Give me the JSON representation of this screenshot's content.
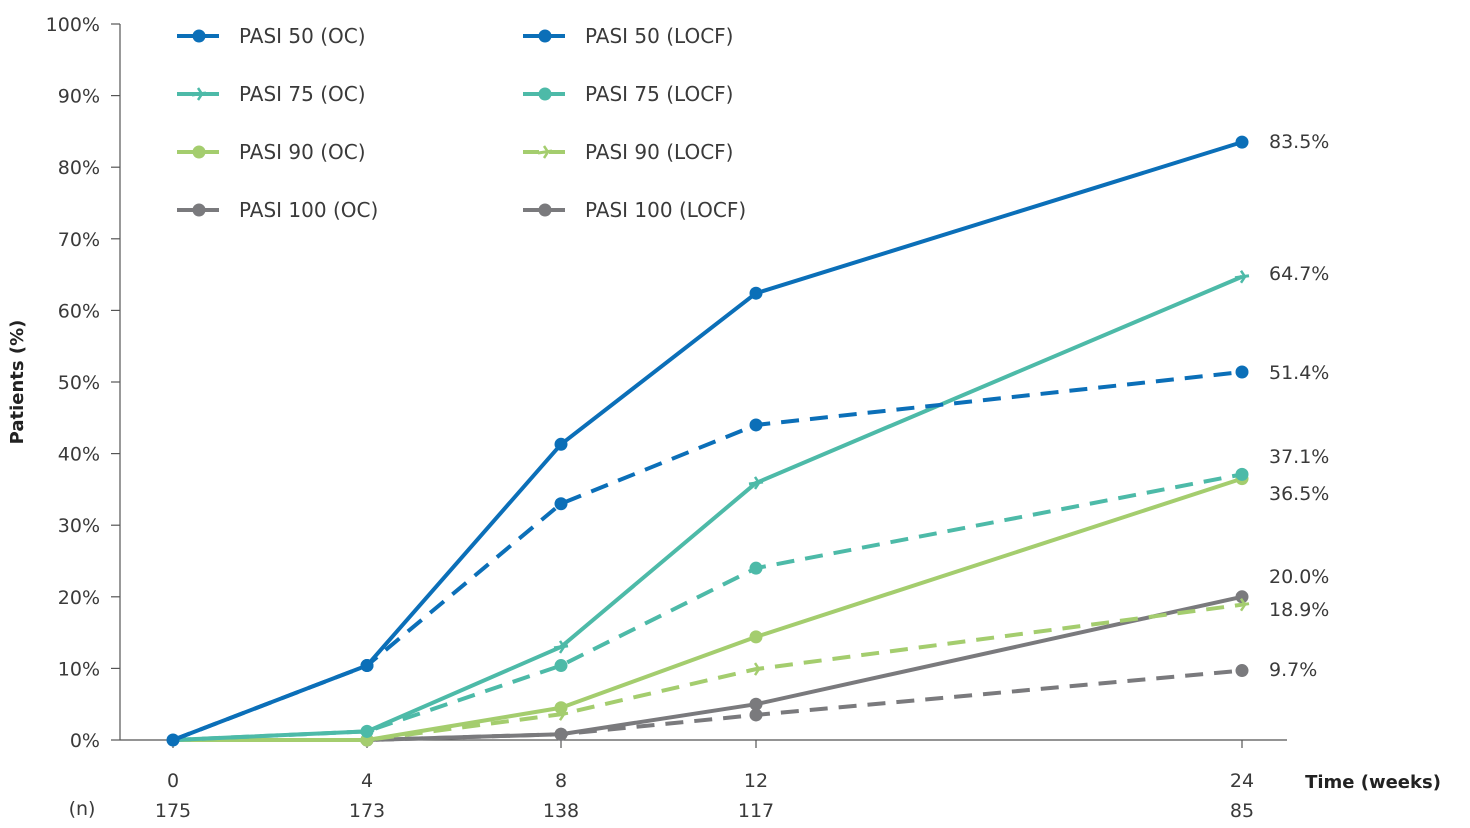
{
  "chart_data": {
    "type": "line",
    "ylabel": "Patients (%)",
    "xlabel": "Time (weeks)",
    "n_label": "(n)",
    "ylim": [
      0,
      100
    ],
    "yticks": [
      "0%",
      "10%",
      "20%",
      "30%",
      "40%",
      "50%",
      "60%",
      "70%",
      "80%",
      "90%",
      "100%"
    ],
    "x": [
      0,
      4,
      8,
      12,
      24
    ],
    "xtick_labels": [
      "0",
      "4",
      "8",
      "12",
      "24"
    ],
    "n_values": [
      "175",
      "173",
      "138",
      "117",
      "85"
    ],
    "grid": false,
    "legend_position": "top-left",
    "series": [
      {
        "name": "PASI 50 (OC)",
        "color": "#0b6fb8",
        "dashed": false,
        "marker": "circle",
        "values": [
          0,
          10.4,
          41.3,
          62.4,
          83.5
        ],
        "end_label": "83.5%"
      },
      {
        "name": "PASI 50 (LOCF)",
        "color": "#0b6fb8",
        "dashed": true,
        "marker": "circle",
        "values": [
          0,
          10.4,
          33.0,
          44.0,
          51.4
        ],
        "end_label": "51.4%"
      },
      {
        "name": "PASI 75 (OC)",
        "color": "#4dbaa8",
        "dashed": false,
        "marker": "arrow",
        "values": [
          0,
          1.2,
          13.0,
          35.9,
          64.7
        ],
        "end_label": "64.7%"
      },
      {
        "name": "PASI 75 (LOCF)",
        "color": "#4dbaa8",
        "dashed": true,
        "marker": "circle",
        "values": [
          0,
          1.2,
          10.4,
          24.0,
          37.1
        ],
        "end_label": "37.1%"
      },
      {
        "name": "PASI 90 (OC)",
        "color": "#a4cd6e",
        "dashed": false,
        "marker": "circle",
        "values": [
          0,
          0,
          4.5,
          14.4,
          36.5
        ],
        "end_label": "36.5%"
      },
      {
        "name": "PASI 90 (LOCF)",
        "color": "#a4cd6e",
        "dashed": true,
        "marker": "arrow",
        "values": [
          0,
          0,
          3.6,
          9.9,
          18.9
        ],
        "end_label": "18.9%"
      },
      {
        "name": "PASI 100 (OC)",
        "color": "#7a7a7d",
        "dashed": false,
        "marker": "circle",
        "values": [
          0,
          0,
          0.8,
          5.0,
          20.0
        ],
        "end_label": "20.0%"
      },
      {
        "name": "PASI 100 (LOCF)",
        "color": "#7a7a7d",
        "dashed": true,
        "marker": "circle",
        "values": [
          0,
          0,
          0.8,
          3.5,
          9.7
        ],
        "end_label": "9.7%"
      }
    ]
  }
}
